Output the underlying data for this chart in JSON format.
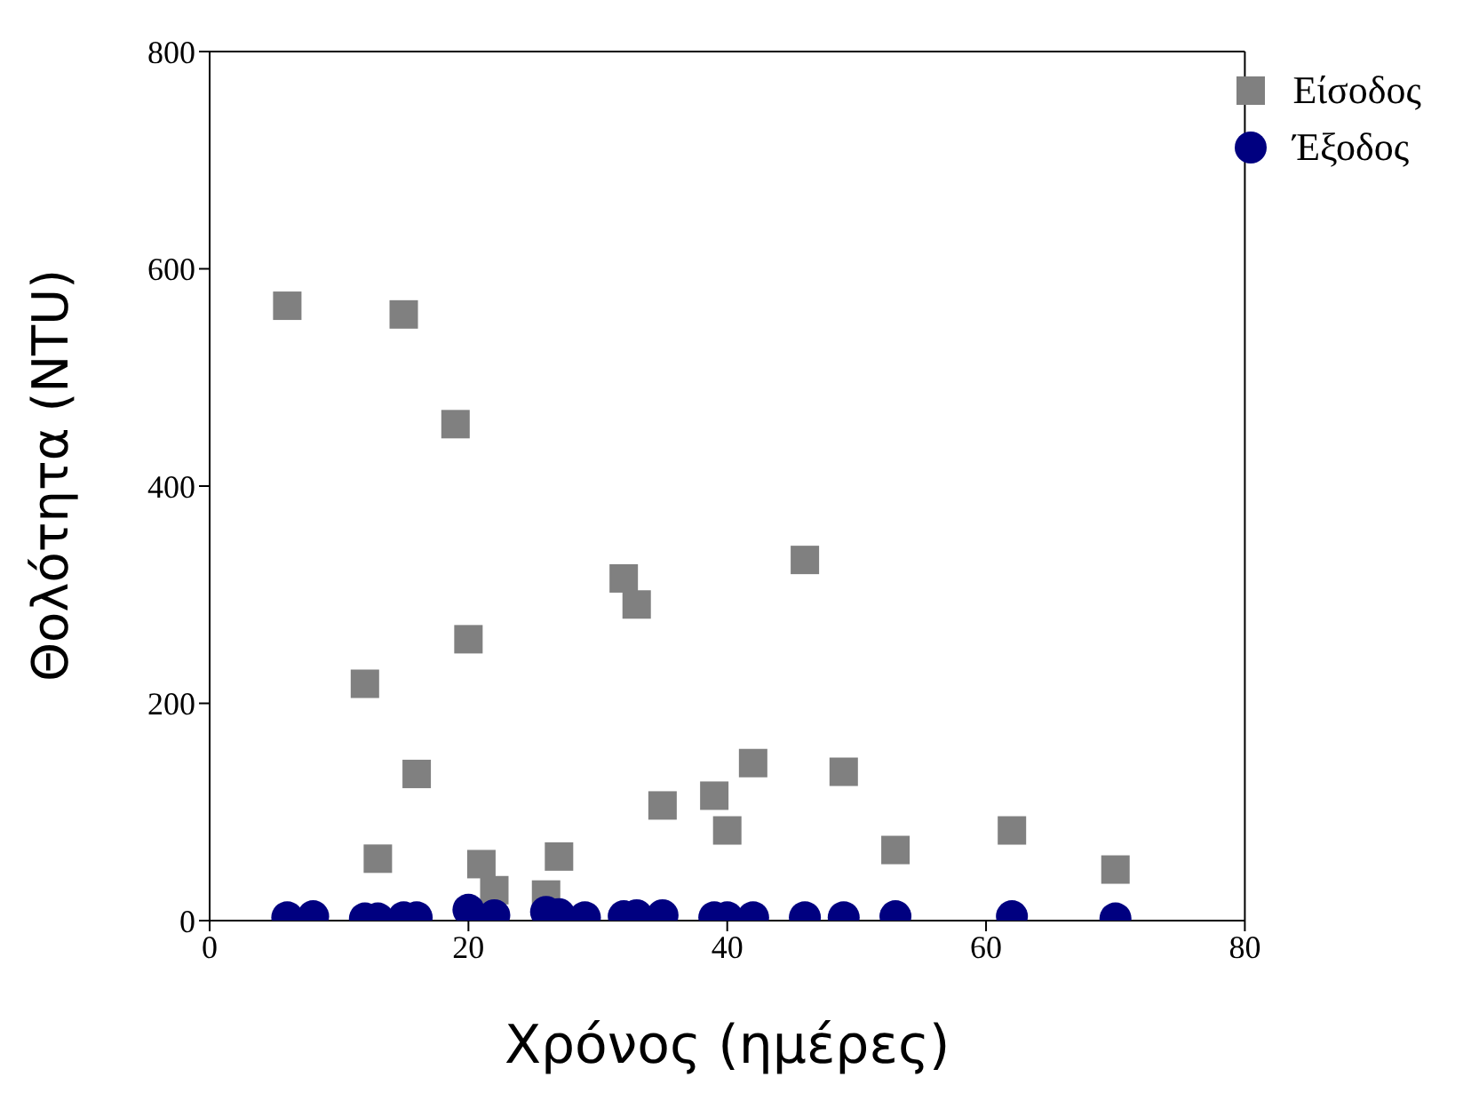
{
  "chart_data": {
    "type": "scatter",
    "xlabel": "Χρόνος (ημέρες)",
    "ylabel": "Θολότητα (NTU)",
    "xlim": [
      0,
      80
    ],
    "xticks": [
      0,
      20,
      40,
      60,
      80
    ],
    "ylim": [
      0,
      800
    ],
    "yticks": [
      0,
      200,
      400,
      600,
      800
    ],
    "grid": false,
    "legend": "top right",
    "series": [
      {
        "name": "Είσοδος",
        "color": "#808080",
        "marker": "square",
        "x": [
          6,
          15,
          19,
          12,
          20,
          13,
          16,
          21,
          22,
          26,
          27,
          32,
          33,
          35,
          39,
          40,
          42,
          46,
          49,
          53,
          62,
          70
        ],
        "values": [
          566,
          558,
          457,
          218,
          259,
          57,
          135,
          52,
          28,
          24,
          59,
          315,
          291,
          106,
          115,
          83,
          145,
          332,
          137,
          65,
          83,
          47
        ]
      },
      {
        "name": "Έξοδος",
        "color": "#000080",
        "marker": "circle",
        "x": [
          6,
          8,
          12,
          13,
          15,
          16,
          20,
          22,
          26,
          27,
          29,
          32,
          33,
          35,
          39,
          40,
          42,
          46,
          49,
          53,
          62,
          70
        ],
        "values": [
          3,
          4,
          2,
          2,
          3,
          3,
          10,
          5,
          8,
          6,
          3,
          4,
          5,
          5,
          3,
          3,
          3,
          3,
          3,
          4,
          4,
          2
        ]
      }
    ]
  }
}
